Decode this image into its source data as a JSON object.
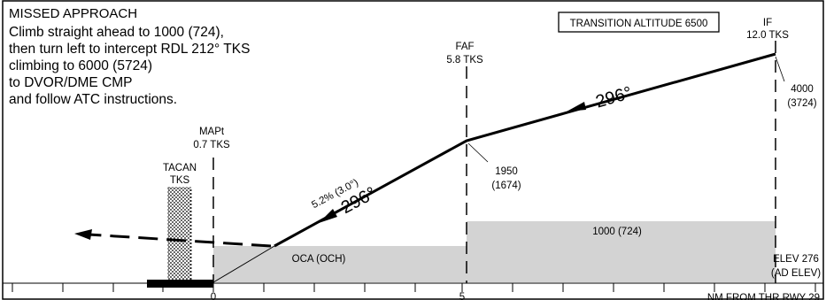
{
  "missed_approach": {
    "title": "MISSED APPROACH",
    "lines": [
      "Climb straight ahead to 1000 (724),",
      "then turn left to intercept RDL 212° TKS",
      "climbing to 6000 (5724)",
      "to DVOR/DME CMP",
      "and follow ATC instructions."
    ]
  },
  "transition_altitude": "TRANSITION ALTITUDE 6500",
  "fixes": {
    "if": {
      "name": "IF",
      "distance": "12.0 TKS",
      "altitude": "4000",
      "height": "(3724)"
    },
    "faf": {
      "name": "FAF",
      "distance": "5.8 TKS",
      "altitude": "1950",
      "height": "(1674)"
    },
    "mapt": {
      "name": "MAPt",
      "distance": "0.7 TKS"
    }
  },
  "tacan": {
    "line1": "TACAN",
    "line2": "TKS"
  },
  "course_upper": "296°",
  "course_lower": "296°",
  "gradient": "5.2% (3.0°)",
  "oca_label": "OCA (OCH)",
  "oca_upper": "1000 (724)",
  "elevation": {
    "line1": "ELEV 276",
    "line2": "(AD ELEV)"
  },
  "axis": {
    "ticks": [
      "0",
      "5"
    ],
    "label": "NM FROM THR RWY 29"
  }
}
